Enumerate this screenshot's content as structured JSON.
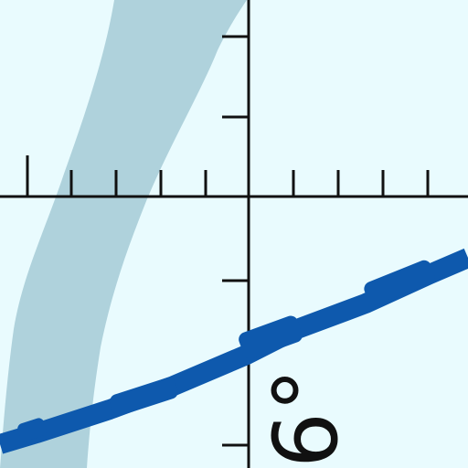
{
  "diagram": {
    "background": "#e9fbfe",
    "axis_color": "#111111",
    "pale_band_color": "#a9cdd8",
    "line_color": "#0e59ad",
    "angle_label": "6°"
  }
}
